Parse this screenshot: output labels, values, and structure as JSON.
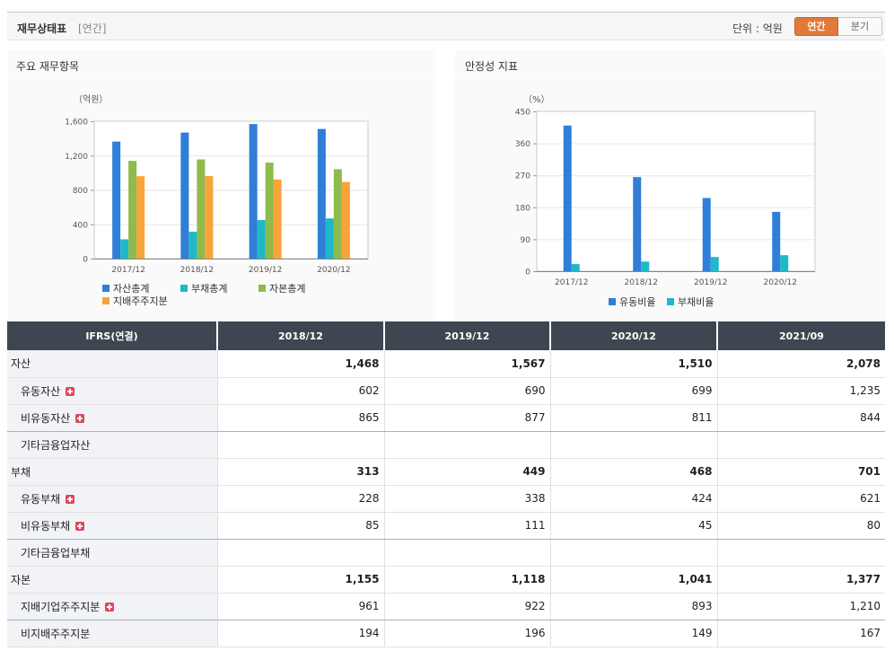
{
  "header": {
    "title": "재무상태표",
    "subtitle": "[연간]",
    "unit_label": "단위 : 억원",
    "toggle_annual": "연간",
    "toggle_quarter": "분기"
  },
  "colors": {
    "accent": "#e2793a",
    "header_dark": "#3e4651",
    "label_bg": "#f1f3f6"
  },
  "chart_data": [
    {
      "type": "bar",
      "title": "주요 재무항목",
      "unit_label": "（억원）",
      "categories": [
        "2017/12",
        "2018/12",
        "2019/12",
        "2020/12"
      ],
      "ylim": [
        0,
        1600
      ],
      "yticks": [
        0,
        400,
        800,
        1200,
        1600
      ],
      "ytick_labels": [
        "0",
        "400",
        "800",
        "1,200",
        "1,600"
      ],
      "grid": true,
      "legend_position": "bottom-left",
      "series": [
        {
          "name": "자산총계",
          "color": "#2f7ed8",
          "values": [
            1363,
            1468,
            1567,
            1510
          ]
        },
        {
          "name": "부채총계",
          "color": "#1fb8c9",
          "values": [
            225,
            313,
            449,
            468
          ]
        },
        {
          "name": "자본총계",
          "color": "#8fba4c",
          "values": [
            1138,
            1155,
            1118,
            1041
          ]
        },
        {
          "name": "지배주주지분",
          "color": "#f7a43a",
          "values": [
            960,
            961,
            922,
            893
          ]
        }
      ]
    },
    {
      "type": "bar",
      "title": "안정성 지표",
      "unit_label": "（%）",
      "categories": [
        "2017/12",
        "2018/12",
        "2019/12",
        "2020/12"
      ],
      "ylim": [
        0,
        450
      ],
      "yticks": [
        0,
        90,
        180,
        270,
        360,
        450
      ],
      "ytick_labels": [
        "0",
        "90",
        "180",
        "270",
        "360",
        "450"
      ],
      "grid": true,
      "legend_position": "bottom-center",
      "series": [
        {
          "name": "유동비율",
          "color": "#2f7ed8",
          "values": [
            410,
            265,
            206,
            167
          ]
        },
        {
          "name": "부채비율",
          "color": "#1fb8c9",
          "values": [
            20,
            27,
            40,
            45
          ]
        }
      ]
    }
  ],
  "table": {
    "corner_label": "IFRS(연결)",
    "columns": [
      "2018/12",
      "2019/12",
      "2020/12",
      "2021/09"
    ],
    "rows": [
      {
        "label": "자산",
        "bold": true,
        "sub": false,
        "expand": false,
        "group_end": false,
        "values": [
          "1,468",
          "1,567",
          "1,510",
          "2,078"
        ]
      },
      {
        "label": "유동자산",
        "bold": false,
        "sub": true,
        "expand": true,
        "group_end": false,
        "values": [
          "602",
          "690",
          "699",
          "1,235"
        ]
      },
      {
        "label": "비유동자산",
        "bold": false,
        "sub": true,
        "expand": true,
        "group_end": true,
        "values": [
          "865",
          "877",
          "811",
          "844"
        ]
      },
      {
        "label": "기타금융업자산",
        "bold": false,
        "sub": true,
        "expand": false,
        "group_end": false,
        "values": [
          "",
          "",
          "",
          ""
        ]
      },
      {
        "label": "부채",
        "bold": true,
        "sub": false,
        "expand": false,
        "group_end": false,
        "values": [
          "313",
          "449",
          "468",
          "701"
        ]
      },
      {
        "label": "유동부채",
        "bold": false,
        "sub": true,
        "expand": true,
        "group_end": false,
        "values": [
          "228",
          "338",
          "424",
          "621"
        ]
      },
      {
        "label": "비유동부채",
        "bold": false,
        "sub": true,
        "expand": true,
        "group_end": true,
        "values": [
          "85",
          "111",
          "45",
          "80"
        ]
      },
      {
        "label": "기타금융업부채",
        "bold": false,
        "sub": true,
        "expand": false,
        "group_end": false,
        "values": [
          "",
          "",
          "",
          ""
        ]
      },
      {
        "label": "자본",
        "bold": true,
        "sub": false,
        "expand": false,
        "group_end": false,
        "values": [
          "1,155",
          "1,118",
          "1,041",
          "1,377"
        ]
      },
      {
        "label": "지배기업주주지분",
        "bold": false,
        "sub": true,
        "expand": true,
        "group_end": true,
        "values": [
          "961",
          "922",
          "893",
          "1,210"
        ]
      },
      {
        "label": "비지배주주지분",
        "bold": false,
        "sub": true,
        "expand": false,
        "group_end": false,
        "values": [
          "194",
          "196",
          "149",
          "167"
        ]
      }
    ]
  }
}
